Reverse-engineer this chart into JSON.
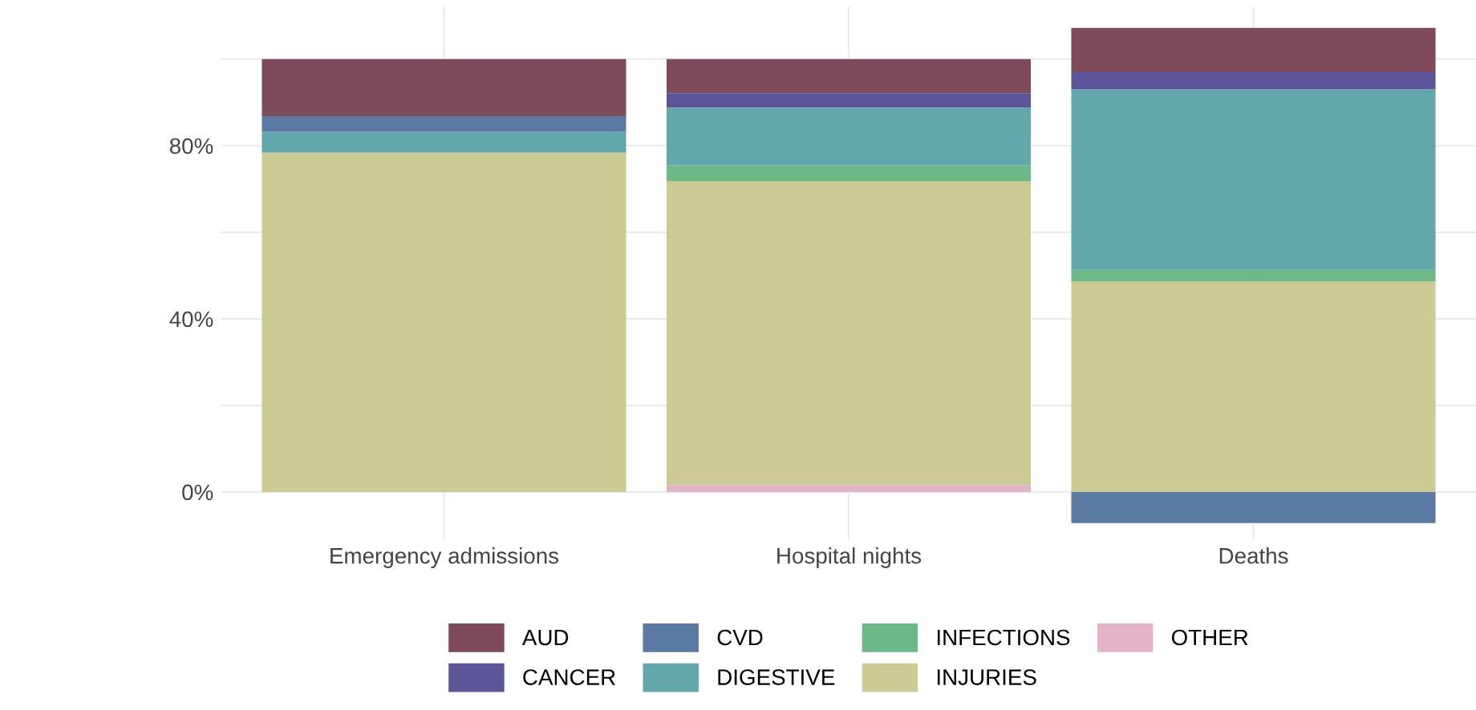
{
  "chart_data": {
    "type": "bar",
    "stacked": true,
    "categories": [
      "Emergency admissions",
      "Hospital nights",
      "Deaths"
    ],
    "series": [
      {
        "name": "OTHER",
        "color": "#e3b3c8",
        "values": [
          null,
          1.6,
          null
        ]
      },
      {
        "name": "INJURIES",
        "color": "#cccb93",
        "values": [
          78.4,
          70.2,
          48.6
        ]
      },
      {
        "name": "INFECTIONS",
        "color": "#6db887",
        "values": [
          null,
          3.6,
          2.7
        ]
      },
      {
        "name": "DIGESTIVE",
        "color": "#62a8ab",
        "values": [
          4.8,
          13.4,
          41.7
        ]
      },
      {
        "name": "CVD",
        "color": "#5a7aa3",
        "values": [
          3.6,
          null,
          -7.2
        ]
      },
      {
        "name": "CANCER",
        "color": "#5b5499",
        "values": [
          null,
          3.3,
          4.0
        ]
      },
      {
        "name": "AUD",
        "color": "#7f4a5a",
        "values": [
          13.2,
          7.9,
          10.2
        ]
      }
    ],
    "ylim": [
      -11,
      112
    ],
    "yticks": [
      {
        "value": 0,
        "label": "0%"
      },
      {
        "value": 20,
        "label": null
      },
      {
        "value": 40,
        "label": "40%"
      },
      {
        "value": 60,
        "label": null
      },
      {
        "value": 80,
        "label": "80%"
      },
      {
        "value": 100,
        "label": null
      }
    ],
    "grid": true,
    "legend": "bottom"
  }
}
